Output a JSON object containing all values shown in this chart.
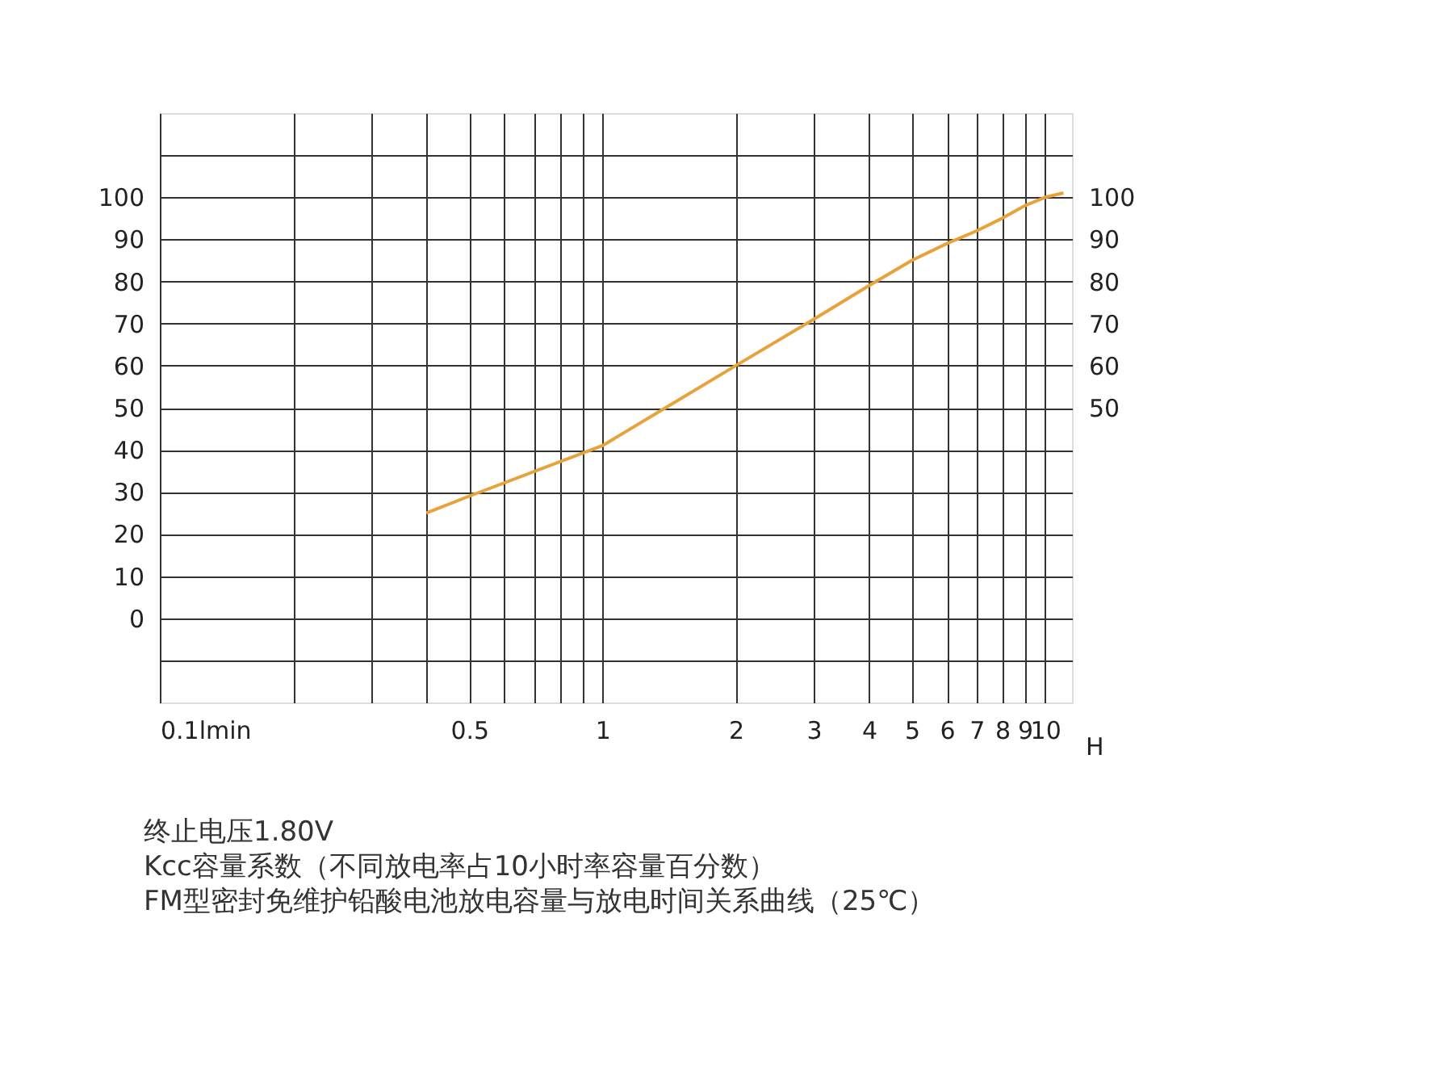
{
  "chart_data": {
    "type": "line",
    "xlabel": "H",
    "log": "x",
    "x": [
      0.4,
      0.5,
      1,
      2,
      3,
      4,
      5,
      6,
      7,
      8,
      9,
      10,
      11
    ],
    "series": [
      {
        "color": "#e8a23c",
        "values": [
          25,
          29,
          41,
          60,
          71,
          79,
          85,
          89,
          92,
          95,
          98,
          100,
          101
        ]
      }
    ],
    "xlim": [
      0.1,
      11.5
    ],
    "xticks": [
      {
        "value": 0.1,
        "label": "0.1lmin"
      },
      {
        "value": 0.2,
        "label": null
      },
      {
        "value": 0.3,
        "label": null
      },
      {
        "value": 0.4,
        "label": null
      },
      0.5,
      {
        "value": 0.6,
        "label": null
      },
      {
        "value": 0.7,
        "label": null
      },
      {
        "value": 0.8,
        "label": null
      },
      {
        "value": 0.9,
        "label": null
      },
      1,
      2,
      3,
      4,
      5,
      6,
      7,
      8,
      9,
      10
    ],
    "ylim": [
      -20,
      120
    ],
    "yticks": [
      {
        "value": -10,
        "label": null
      },
      0,
      10,
      20,
      30,
      40,
      50,
      60,
      70,
      80,
      90,
      100,
      {
        "value": 110,
        "label": null
      }
    ],
    "y2lim": [
      -20,
      120
    ],
    "y2ticks": [
      50,
      60,
      70,
      80,
      90,
      100
    ],
    "grid": true,
    "marker": "none",
    "line_style": "solid",
    "annotations": [
      "终止电压1.80V",
      "Kcc容量系数（不同放电率占10小时率容量百分数）",
      "FM型密封免维护铅酸电池放电容量与放电时间关系曲线（25℃）"
    ]
  }
}
